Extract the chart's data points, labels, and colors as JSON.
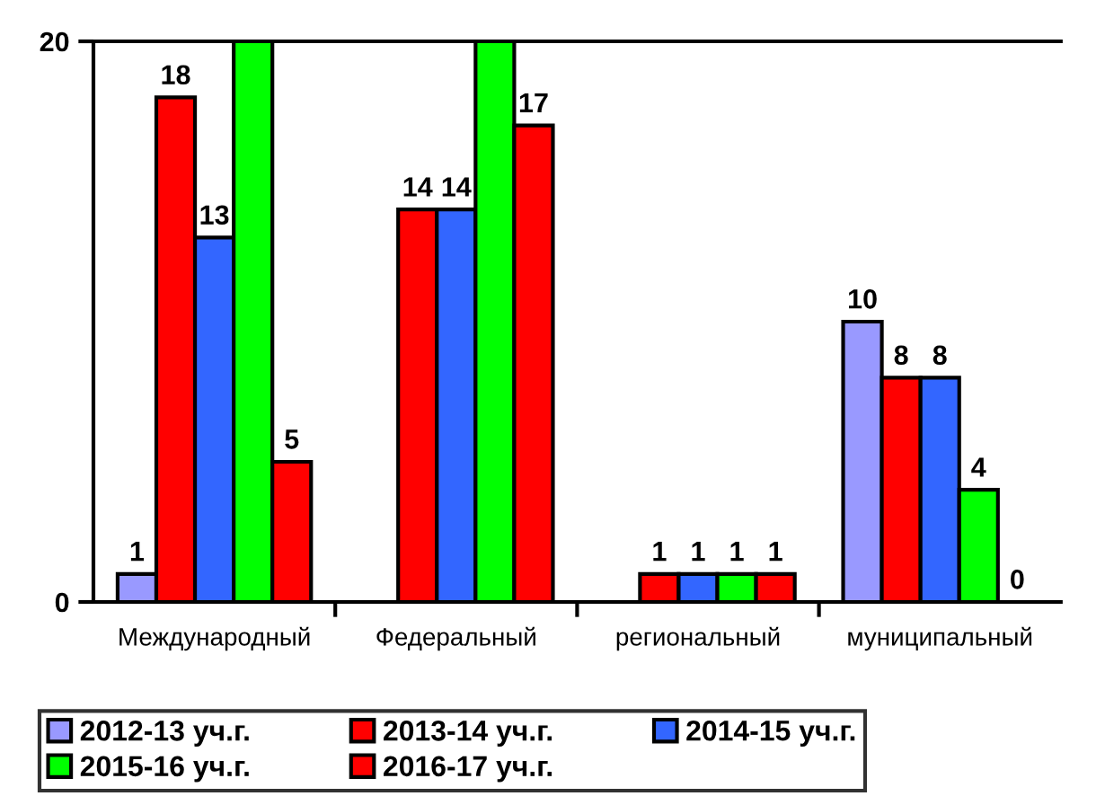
{
  "chart_data": {
    "type": "bar",
    "categories": [
      "Международный",
      "Федеральный",
      "региональный",
      "муниципальный"
    ],
    "ylim": [
      0,
      20
    ],
    "yticks": [
      0,
      20
    ],
    "grid": false,
    "legend": "bottom",
    "series": [
      {
        "name": "2012-13 уч.г.",
        "color": "#9999ff",
        "values": [
          1,
          null,
          null,
          10
        ],
        "value_labels": [
          "1",
          null,
          null,
          "10"
        ]
      },
      {
        "name": "2013-14 уч.г.",
        "color": "#ff0000",
        "values": [
          18,
          14,
          1,
          8
        ],
        "value_labels": [
          "18",
          "14",
          "1",
          "8"
        ]
      },
      {
        "name": "2014-15 уч.г.",
        "color": "#3366ff",
        "values": [
          13,
          14,
          1,
          8
        ],
        "value_labels": [
          "13",
          "14",
          "1",
          "8"
        ]
      },
      {
        "name": "2015-16 уч.г.",
        "color": "#00ff00",
        "values": [
          20,
          20,
          1,
          4
        ],
        "value_labels": [
          null,
          null,
          "1",
          "4"
        ]
      },
      {
        "name": "2016-17 уч.г.",
        "color": "#ff0000",
        "values": [
          5,
          17,
          1,
          0
        ],
        "value_labels": [
          "5",
          "17",
          "1",
          "0"
        ]
      }
    ]
  }
}
